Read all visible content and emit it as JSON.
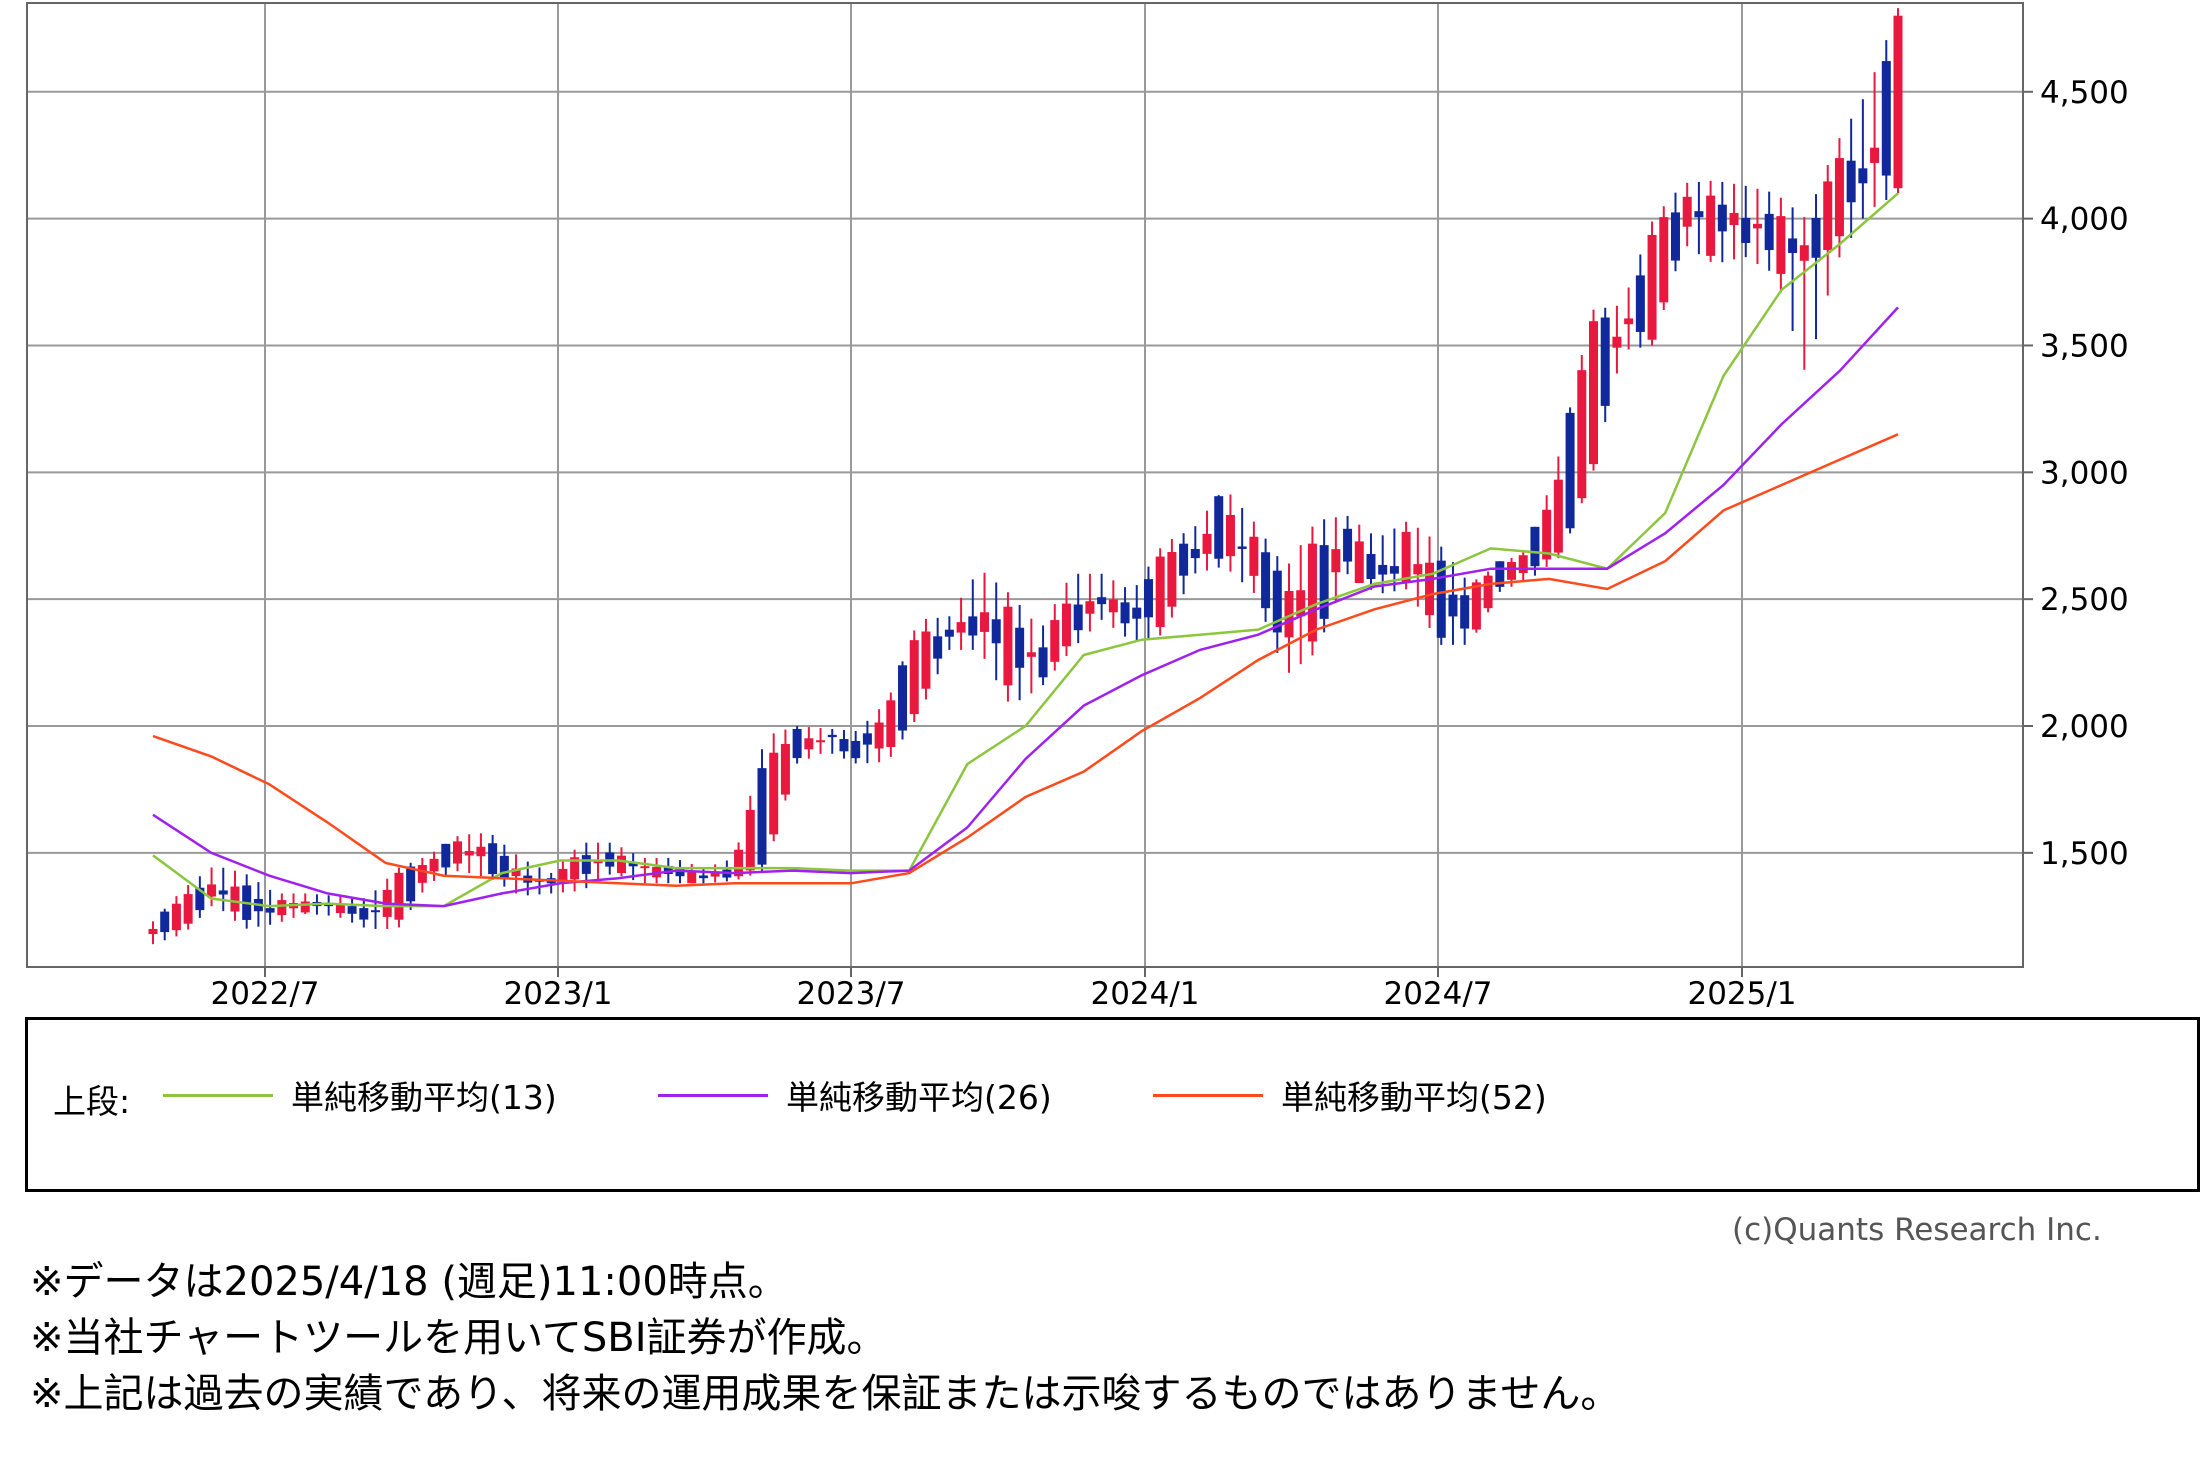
{
  "chart_data": {
    "type": "candlestick",
    "x_tick_labels": [
      "2022/7",
      "2023/1",
      "2023/7",
      "2024/1",
      "2024/7",
      "2025/1"
    ],
    "y_tick_labels": [
      "1,500",
      "2,000",
      "2,500",
      "3,000",
      "3,500",
      "4,000",
      "4,500"
    ],
    "y_ticks": [
      1500,
      2000,
      2500,
      3000,
      3500,
      4000,
      4500
    ],
    "ylim": [
      1050,
      4850
    ],
    "grid": true,
    "up_color": "#e8183f",
    "down_color": "#10289a",
    "ohlc_anchors": [
      [
        1180,
        1230,
        1140,
        1200
      ],
      [
        1200,
        1360,
        1180,
        1330
      ],
      [
        1340,
        1450,
        1300,
        1380
      ],
      [
        1380,
        1420,
        1200,
        1230
      ],
      [
        1240,
        1340,
        1220,
        1320
      ],
      [
        1310,
        1340,
        1260,
        1290
      ],
      [
        1300,
        1330,
        1250,
        1290
      ],
      [
        1280,
        1320,
        1200,
        1230
      ],
      [
        1230,
        1440,
        1200,
        1420
      ],
      [
        1420,
        1490,
        1380,
        1460
      ],
      [
        1460,
        1570,
        1430,
        1550
      ],
      [
        1550,
        1580,
        1400,
        1420
      ],
      [
        1420,
        1480,
        1330,
        1380
      ],
      [
        1380,
        1420,
        1340,
        1390
      ],
      [
        1400,
        1540,
        1350,
        1510
      ],
      [
        1510,
        1540,
        1420,
        1440
      ],
      [
        1440,
        1480,
        1380,
        1450
      ],
      [
        1450,
        1480,
        1380,
        1410
      ],
      [
        1410,
        1440,
        1380,
        1400
      ],
      [
        1400,
        1480,
        1390,
        1460
      ],
      [
        1460,
        1960,
        1430,
        1870
      ],
      [
        1870,
        2000,
        1850,
        1960
      ],
      [
        1960,
        1990,
        1900,
        1940
      ],
      [
        1940,
        1980,
        1850,
        1870
      ],
      [
        1900,
        2100,
        1860,
        2070
      ],
      [
        2070,
        2420,
        2040,
        2380
      ],
      [
        2380,
        2430,
        2300,
        2350
      ],
      [
        2350,
        2620,
        2300,
        2500
      ],
      [
        2480,
        2520,
        2080,
        2180
      ],
      [
        2180,
        2380,
        2150,
        2340
      ],
      [
        2340,
        2600,
        2300,
        2510
      ],
      [
        2510,
        2600,
        2420,
        2480
      ],
      [
        2480,
        2530,
        2330,
        2380
      ],
      [
        2380,
        2720,
        2360,
        2700
      ],
      [
        2700,
        2780,
        2600,
        2650
      ],
      [
        2650,
        2940,
        2630,
        2900
      ],
      [
        2750,
        2800,
        2520,
        2550
      ],
      [
        2560,
        2620,
        2200,
        2300
      ],
      [
        2300,
        2810,
        2290,
        2780
      ],
      [
        2780,
        2830,
        2600,
        2650
      ],
      [
        2650,
        2740,
        2520,
        2560
      ],
      [
        2560,
        2810,
        2540,
        2780
      ],
      [
        2680,
        2720,
        2320,
        2330
      ],
      [
        2330,
        2560,
        2320,
        2550
      ],
      [
        2550,
        2640,
        2530,
        2620
      ],
      [
        2620,
        2700,
        2580,
        2690
      ],
      [
        2690,
        3100,
        2670,
        3000
      ],
      [
        3000,
        3640,
        2980,
        3600
      ],
      [
        3600,
        3660,
        3480,
        3520
      ],
      [
        3520,
        4000,
        3500,
        3950
      ],
      [
        3950,
        4140,
        3900,
        4110
      ],
      [
        4110,
        4150,
        3820,
        3900
      ],
      [
        3900,
        4130,
        3850,
        4090
      ],
      [
        4050,
        4100,
        3780,
        3820
      ],
      [
        3820,
        4000,
        3380,
        3900
      ],
      [
        3900,
        4300,
        3830,
        4250
      ],
      [
        4250,
        4500,
        4030,
        4120
      ],
      [
        4120,
        4830,
        4100,
        4800
      ]
    ],
    "series": [
      {
        "name": "単純移動平均(13)",
        "color": "#8cc63f",
        "values": [
          1490,
          1320,
          1290,
          1300,
          1290,
          1290,
          1420,
          1470,
          1470,
          1440,
          1440,
          1440,
          1430,
          1430,
          1850,
          2000,
          2280,
          2340,
          2360,
          2380,
          2480,
          2560,
          2600,
          2700,
          2680,
          2620,
          2840,
          3380,
          3720,
          3900,
          4100
        ]
      },
      {
        "name": "単純移動平均(26)",
        "color": "#a020f0",
        "values": [
          1650,
          1500,
          1410,
          1340,
          1300,
          1290,
          1340,
          1380,
          1400,
          1430,
          1420,
          1430,
          1420,
          1430,
          1600,
          1870,
          2080,
          2200,
          2300,
          2360,
          2460,
          2550,
          2580,
          2620,
          2620,
          2620,
          2760,
          2950,
          3190,
          3400,
          3650
        ]
      },
      {
        "name": "単純移動平均(52)",
        "color": "#ff4a1c",
        "values": [
          1960,
          1880,
          1770,
          1620,
          1460,
          1410,
          1400,
          1390,
          1380,
          1370,
          1380,
          1380,
          1380,
          1420,
          1560,
          1720,
          1820,
          1980,
          2110,
          2260,
          2380,
          2460,
          2520,
          2560,
          2580,
          2540,
          2650,
          2850,
          2950,
          3050,
          3150
        ]
      }
    ]
  },
  "legend": {
    "title": "上段:",
    "items": [
      {
        "label": "単純移動平均(13)",
        "color": "#8cc63f"
      },
      {
        "label": "単純移動平均(26)",
        "color": "#a020f0"
      },
      {
        "label": "単純移動平均(52)",
        "color": "#ff4a1c"
      }
    ]
  },
  "copyright": "(c)Quants Research Inc.",
  "notes": [
    "※データは2025/4/18 (週足)11:00時点。",
    "※当社チャートツールを用いてSBI証券が作成。",
    "※上記は過去の実績であり、将来の運用成果を保証または示唆するものではありません。"
  ]
}
